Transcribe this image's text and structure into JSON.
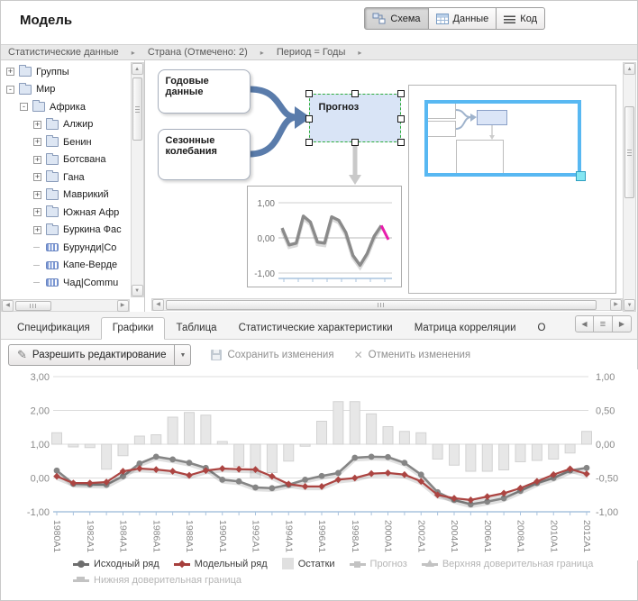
{
  "header": {
    "title": "Модель",
    "view_buttons": [
      {
        "label": "Схема",
        "active": true
      },
      {
        "label": "Данные",
        "active": false
      },
      {
        "label": "Код",
        "active": false
      }
    ]
  },
  "breadcrumb": {
    "items": [
      "Статистические данные",
      "Страна (Отмечено: 2)",
      "Период = Годы"
    ]
  },
  "icons": {
    "breadcrumb_arrow": "▸",
    "dropdown_arrow": "▼",
    "pencil": "✎",
    "cancel_x": "✕",
    "scroll_up": "▲",
    "scroll_down": "▼",
    "scroll_left": "◀",
    "scroll_right": "▶",
    "tab_prev": "◀",
    "tab_menu": "≡",
    "tab_next": "▶",
    "expander_plus": "+",
    "expander_minus": "-"
  },
  "tree": {
    "items": [
      {
        "label": "Группы",
        "expander": "+"
      },
      {
        "label": "Мир",
        "expander": "-"
      },
      {
        "label": "Африка",
        "expander": "-"
      },
      {
        "label": "Алжир",
        "expander": "+"
      },
      {
        "label": "Бенин",
        "expander": "+"
      },
      {
        "label": "Ботсвана",
        "expander": "+"
      },
      {
        "label": "Гана",
        "expander": "+"
      },
      {
        "label": "Маврикий",
        "expander": "+"
      },
      {
        "label": "Южная Афр",
        "expander": "+"
      },
      {
        "label": "Буркина Фас",
        "expander": "+"
      },
      {
        "label": "Бурунди|Co",
        "expander": ""
      },
      {
        "label": "Капе-Верде",
        "expander": ""
      },
      {
        "label": "Чад|Commu",
        "expander": ""
      }
    ]
  },
  "diagram": {
    "nodes": [
      {
        "label": "Годовые данные"
      },
      {
        "label": "Сезонные колебания"
      },
      {
        "label": "Прогноз",
        "selected": true
      }
    ],
    "arrow_color": "#5a7cab",
    "preview": {
      "labels": [
        "1,00",
        "0,00",
        "-1,00"
      ],
      "values": [
        0.28,
        -0.2,
        -0.15,
        0.62,
        0.45,
        -0.12,
        -0.15,
        0.6,
        0.5,
        0.15,
        -0.5,
        -0.78,
        -0.45,
        0.05,
        0.35,
        -0.05
      ],
      "magenta_from": 14,
      "line_color": "#8a8a8a",
      "accent_color": "#e81cac"
    }
  },
  "tabs": {
    "items": [
      "Спецификация",
      "Графики",
      "Таблица",
      "Статистические характеристики",
      "Матрица корреляции",
      "О"
    ],
    "active": "Графики"
  },
  "toolbar": {
    "edit_label": "Разрешить редактирование",
    "save_label": "Сохранить изменения",
    "cancel_label": "Отменить изменения"
  },
  "chart_data": {
    "type": "line+bar",
    "categories": [
      "1980A1",
      "1981A1",
      "1982A1",
      "1983A1",
      "1984A1",
      "1985A1",
      "1986A1",
      "1987A1",
      "1988A1",
      "1989A1",
      "1990A1",
      "1991A1",
      "1992A1",
      "1993A1",
      "1994A1",
      "1995A1",
      "1996A1",
      "1997A1",
      "1998A1",
      "1999A1",
      "2000A1",
      "2001A1",
      "2002A1",
      "2003A1",
      "2004A1",
      "2005A1",
      "2006A1",
      "2007A1",
      "2008A1",
      "2009A1",
      "2010A1",
      "2011A1",
      "2012A1"
    ],
    "x_label_every": 2,
    "left_axis": {
      "min": -1,
      "max": 3,
      "ticks": [
        "3,00",
        "2,00",
        "1,00",
        "0,00",
        "-1,00"
      ]
    },
    "right_axis": {
      "min": -1,
      "max": 1,
      "ticks": [
        "1,00",
        "0,50",
        "0,00",
        "-0,50",
        "-1,00"
      ]
    },
    "grid": true,
    "axis_color": "#a9c3de",
    "grid_color": "#dcdcdc",
    "series": [
      {
        "name": "Исходный ряд",
        "type": "line",
        "marker": "circle",
        "axis": "left",
        "color": "#858585",
        "values": [
          0.22,
          -0.17,
          -0.19,
          -0.2,
          0.05,
          0.43,
          0.63,
          0.55,
          0.45,
          0.3,
          -0.05,
          -0.1,
          -0.28,
          -0.3,
          -0.2,
          -0.05,
          0.06,
          0.15,
          0.6,
          0.63,
          0.62,
          0.45,
          0.1,
          -0.42,
          -0.65,
          -0.78,
          -0.7,
          -0.6,
          -0.38,
          -0.15,
          0.0,
          0.22,
          0.3
        ]
      },
      {
        "name": "Модельный ряд",
        "type": "line",
        "marker": "diamond",
        "axis": "left",
        "color": "#ac4542",
        "values": [
          0.05,
          -0.15,
          -0.15,
          -0.12,
          0.2,
          0.28,
          0.25,
          0.2,
          0.08,
          0.22,
          0.28,
          0.26,
          0.25,
          0.05,
          -0.18,
          -0.25,
          -0.25,
          -0.05,
          0.0,
          0.13,
          0.15,
          0.1,
          -0.1,
          -0.5,
          -0.6,
          -0.65,
          -0.55,
          -0.45,
          -0.3,
          -0.1,
          0.1,
          0.27,
          0.12
        ]
      },
      {
        "name": "Остатки",
        "type": "bar",
        "axis": "right",
        "color": "#e7e7e7",
        "border_color": "#d2d2d2",
        "values": [
          0.17,
          -0.04,
          -0.05,
          -0.37,
          -0.17,
          0.12,
          0.14,
          0.4,
          0.47,
          0.43,
          0.04,
          -0.33,
          -0.5,
          -0.42,
          -0.25,
          -0.03,
          0.34,
          0.63,
          0.63,
          0.45,
          0.26,
          0.19,
          0.17,
          -0.22,
          -0.31,
          -0.4,
          -0.4,
          -0.38,
          -0.26,
          -0.24,
          -0.22,
          -0.13,
          0.19
        ]
      }
    ]
  },
  "legend": {
    "items": [
      {
        "label": "Исходный ряд",
        "marker": "circle",
        "color": "#6e6e6e",
        "dim": false
      },
      {
        "label": "Модельный ряд",
        "marker": "diamond",
        "color": "#a63f3c",
        "dim": false
      },
      {
        "label": "Остатки",
        "marker": "square",
        "color": "#e0e0e0",
        "dim": false
      },
      {
        "label": "Прогноз",
        "marker": "psquare",
        "color": "#c3c3c3",
        "dim": true
      },
      {
        "label": "Верхняя доверительная граница",
        "marker": "tri",
        "color": "#c3c3c3",
        "dim": true
      },
      {
        "label": "Нижняя доверительная граница",
        "marker": "tee",
        "color": "#c3c3c3",
        "dim": true
      }
    ]
  }
}
